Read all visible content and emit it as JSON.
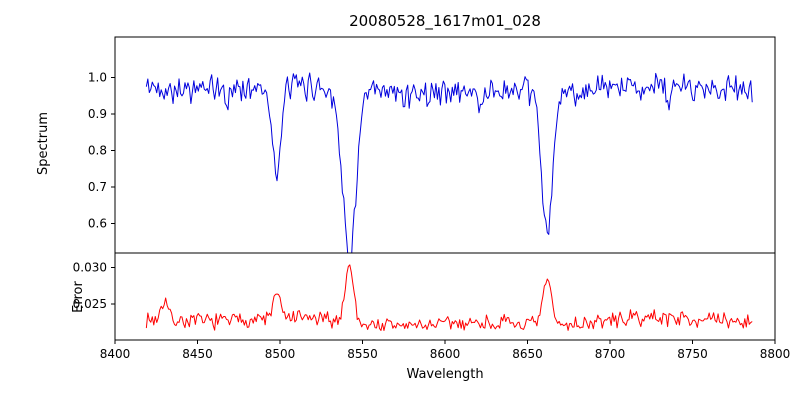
{
  "figure": {
    "title": "20080528_1617m01_028",
    "xlabel": "Wavelength",
    "background": "#ffffff",
    "axis_color": "#000000",
    "tick_label_color": "#000000"
  },
  "x_axis": {
    "ticks": [
      "8400",
      "8450",
      "8500",
      "8550",
      "8600",
      "8650",
      "8700",
      "8750",
      "8800"
    ],
    "tick_values": [
      8400,
      8450,
      8500,
      8550,
      8600,
      8650,
      8700,
      8750,
      8800
    ],
    "xlim": [
      8400,
      8800
    ]
  },
  "chart_data": [
    {
      "type": "line",
      "name": "spectrum",
      "ylabel": "Spectrum",
      "legend": "none",
      "grid": false,
      "color": "#0000dd",
      "xlim": [
        8400,
        8800
      ],
      "ylim": [
        0.52,
        1.11
      ],
      "yticks": [
        "1.0",
        "0.9",
        "0.8",
        "0.7",
        "0.6"
      ],
      "ytick_values": [
        1.0,
        0.9,
        0.8,
        0.7,
        0.6
      ],
      "x_start": 8419,
      "x_end": 8787,
      "x_step": 0.9,
      "baseline": 0.965,
      "wiggle": 0.008,
      "noise_amplitude": 0.045,
      "seed": 42,
      "absorption_lines": [
        {
          "center": 8498.0,
          "depth": 0.26,
          "sigma": 2.4
        },
        {
          "center": 8542.0,
          "depth": 0.46,
          "sigma": 4.0
        },
        {
          "center": 8662.0,
          "depth": 0.39,
          "sigma": 3.2
        },
        {
          "center": 8468.0,
          "depth": 0.04,
          "sigma": 1.2
        },
        {
          "center": 8621.0,
          "depth": 0.05,
          "sigma": 1.2
        },
        {
          "center": 8736.0,
          "depth": 0.07,
          "sigma": 1.0
        }
      ]
    },
    {
      "type": "line",
      "name": "error",
      "ylabel": "Error",
      "legend": "none",
      "grid": false,
      "color": "#ff0000",
      "xlim": [
        8400,
        8800
      ],
      "ylim": [
        0.02,
        0.032
      ],
      "yticks": [
        "0.030",
        "0.025"
      ],
      "ytick_values": [
        0.03,
        0.025
      ],
      "x_start": 8419,
      "x_end": 8787,
      "x_step": 0.9,
      "baseline": 0.0225,
      "wiggle": 0.0004,
      "noise_amplitude": 0.0013,
      "seed": 7,
      "peaks": [
        {
          "center": 8430.0,
          "height": 0.0028,
          "sigma": 2.0
        },
        {
          "center": 8498.0,
          "height": 0.0035,
          "sigma": 2.0
        },
        {
          "center": 8542.0,
          "height": 0.008,
          "sigma": 2.5
        },
        {
          "center": 8662.0,
          "height": 0.0062,
          "sigma": 2.5
        }
      ]
    }
  ]
}
